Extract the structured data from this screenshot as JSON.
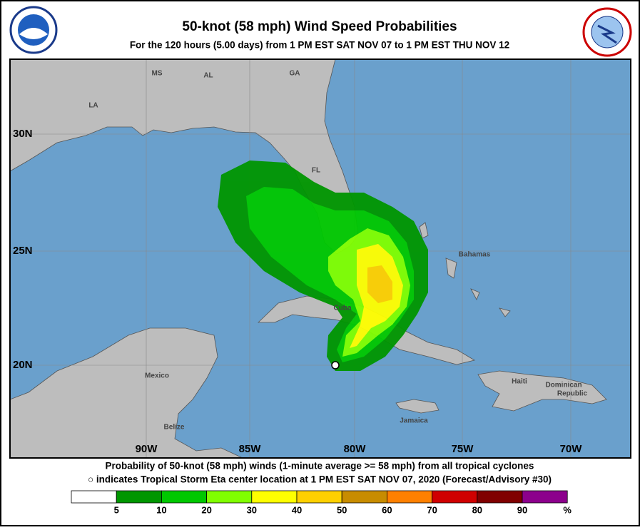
{
  "header": {
    "title": "50-knot (58 mph) Wind Speed Probabilities",
    "subtitle": "For the 120 hours (5.00 days) from 1 PM EST SAT NOV 07 to 1 PM EST THU NOV 12"
  },
  "map": {
    "place_labels": [
      "MS",
      "AL",
      "GA",
      "LA",
      "FL",
      "Bahamas",
      "Cuba",
      "Mexico",
      "Belize",
      "Haiti",
      "Dominican",
      "Republic",
      "Jamaica"
    ],
    "lat_labels": [
      "30N",
      "25N",
      "20N"
    ],
    "lon_labels": [
      "90W",
      "85W",
      "80W",
      "75W",
      "70W"
    ]
  },
  "footer": {
    "line1": "Probability of 50-knot (58 mph) winds (1-minute average >= 58 mph) from all tropical cyclones",
    "line2": "○ indicates Tropical Storm Eta center location at 1 PM EST SAT NOV 07, 2020 (Forecast/Advisory #30)"
  },
  "legend": {
    "colors": [
      "#ffffff",
      "#009600",
      "#00c800",
      "#80ff00",
      "#ffff00",
      "#ffd000",
      "#c88c00",
      "#ff8000",
      "#d00000",
      "#800000",
      "#8c008c"
    ],
    "labels": [
      5,
      10,
      20,
      30,
      40,
      50,
      60,
      70,
      80,
      90,
      "%"
    ]
  }
}
